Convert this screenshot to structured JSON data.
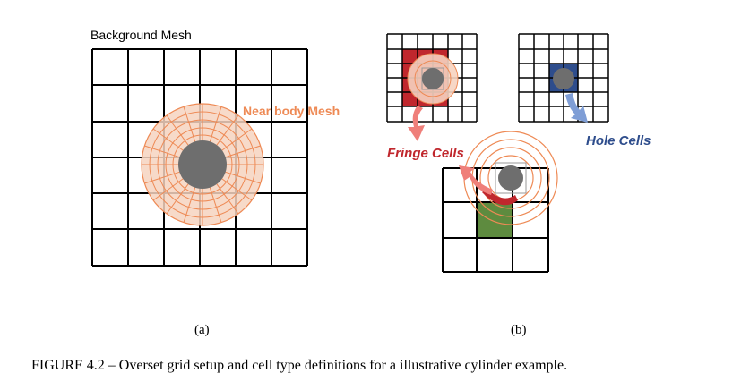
{
  "panel_a": {
    "title": "Background Mesh",
    "near_body_label": "Near body Mesh",
    "label": "(a)"
  },
  "panel_b": {
    "fringe_label": "Fringe Cells",
    "hole_label": "Hole Cells",
    "label": "(b)"
  },
  "caption": "FIGURE 4.2 – Overset grid setup and cell type definitions for a illustrative cylinder example.",
  "colors": {
    "grid_line": "#000000",
    "cylinder": "#6e6e6e",
    "near_body_fill": "#f6d3c0",
    "near_body_line": "#ee8a55",
    "fringe": "#c0272d",
    "fringe_label": "#c0272d",
    "hole": "#2e4d8c",
    "hole_arrow": "#7f9ed6",
    "overlap_green": "#5e8b3f",
    "fringe_arrow": "#ef7f7a"
  }
}
